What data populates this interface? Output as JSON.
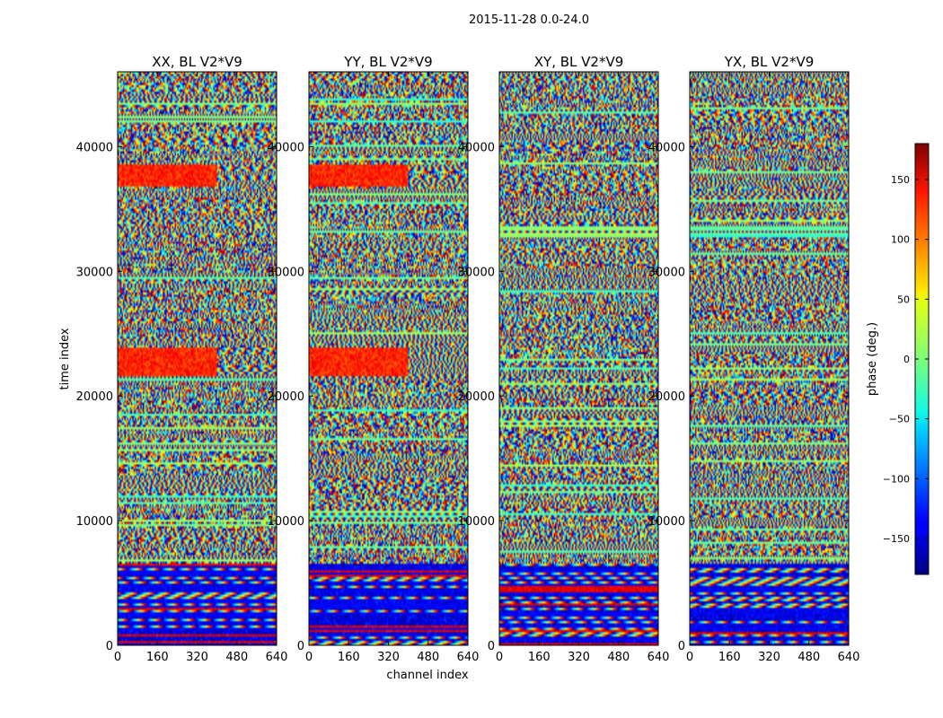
{
  "figure": {
    "suptitle": "2015-11-28 0.0-24.0"
  },
  "chart_data": {
    "type": "heatmap",
    "xlabel": "channel index",
    "ylabel": "time index",
    "xlim": [
      0,
      640
    ],
    "ylim": [
      0,
      46000
    ],
    "x_ticks": [
      0,
      160,
      320,
      480,
      640
    ],
    "y_ticks": [
      0,
      10000,
      20000,
      30000,
      40000
    ],
    "colormap": "jet",
    "panels": [
      {
        "title": "XX, BL V2*V9",
        "pol": "XX"
      },
      {
        "title": "YY, BL V2*V9",
        "pol": "YY"
      },
      {
        "title": "XY, BL V2*V9",
        "pol": "XY"
      },
      {
        "title": "YX, BL V2*V9",
        "pol": "YX"
      }
    ],
    "colorbar": {
      "label": "phase (deg.)",
      "range": [
        -180,
        180
      ],
      "ticks": [
        -150,
        -100,
        -50,
        0,
        50,
        100,
        150
      ],
      "tick_labels": [
        "−150",
        "−100",
        "−50",
        "0",
        "50",
        "100",
        "150"
      ]
    }
  }
}
